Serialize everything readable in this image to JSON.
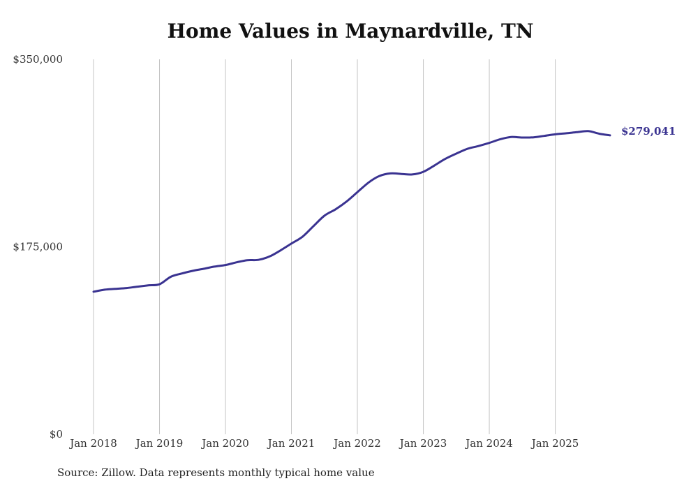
{
  "chart_data": {
    "type": "line",
    "title": "Home Values in Maynardville, TN",
    "xlabel": "",
    "ylabel": "",
    "ylim": [
      0,
      350000
    ],
    "y_ticks": [
      {
        "value": 0,
        "label": "$0"
      },
      {
        "value": 175000,
        "label": "$175,000"
      },
      {
        "value": 350000,
        "label": "$350,000"
      }
    ],
    "x_ticks": [
      {
        "value": 2018.0,
        "label": "Jan 2018"
      },
      {
        "value": 2019.0,
        "label": "Jan 2019"
      },
      {
        "value": 2020.0,
        "label": "Jan 2020"
      },
      {
        "value": 2021.0,
        "label": "Jan 2021"
      },
      {
        "value": 2022.0,
        "label": "Jan 2022"
      },
      {
        "value": 2023.0,
        "label": "Jan 2023"
      },
      {
        "value": 2024.0,
        "label": "Jan 2024"
      },
      {
        "value": 2025.0,
        "label": "Jan 2025"
      }
    ],
    "xlim": [
      2018.0,
      2025.83
    ],
    "grid": "vertical",
    "series": [
      {
        "name": "Typical home value",
        "color": "#3a3391",
        "x": [
          2018.0,
          2018.17,
          2018.33,
          2018.5,
          2018.67,
          2018.83,
          2019.0,
          2019.17,
          2019.33,
          2019.5,
          2019.67,
          2019.83,
          2020.0,
          2020.17,
          2020.33,
          2020.5,
          2020.67,
          2020.83,
          2021.0,
          2021.17,
          2021.33,
          2021.5,
          2021.67,
          2021.83,
          2022.0,
          2022.17,
          2022.33,
          2022.5,
          2022.67,
          2022.83,
          2023.0,
          2023.17,
          2023.33,
          2023.5,
          2023.67,
          2023.83,
          2024.0,
          2024.17,
          2024.33,
          2024.5,
          2024.67,
          2024.83,
          2025.0,
          2025.17,
          2025.33,
          2025.5,
          2025.67,
          2025.83
        ],
        "values": [
          133000,
          135000,
          135700,
          136500,
          137800,
          139000,
          140000,
          147000,
          150000,
          152500,
          154500,
          156500,
          158000,
          160500,
          162500,
          162800,
          166000,
          171500,
          178000,
          184500,
          194000,
          204000,
          210000,
          217000,
          226000,
          235000,
          241000,
          243500,
          243000,
          242500,
          245000,
          251000,
          257000,
          262000,
          266500,
          269000,
          272000,
          275500,
          277500,
          277000,
          277200,
          278500,
          280000,
          281000,
          282000,
          283000,
          280500,
          279041
        ]
      }
    ],
    "end_label": "$279,041"
  },
  "source": "Source: Zillow. Data represents monthly typical home value"
}
